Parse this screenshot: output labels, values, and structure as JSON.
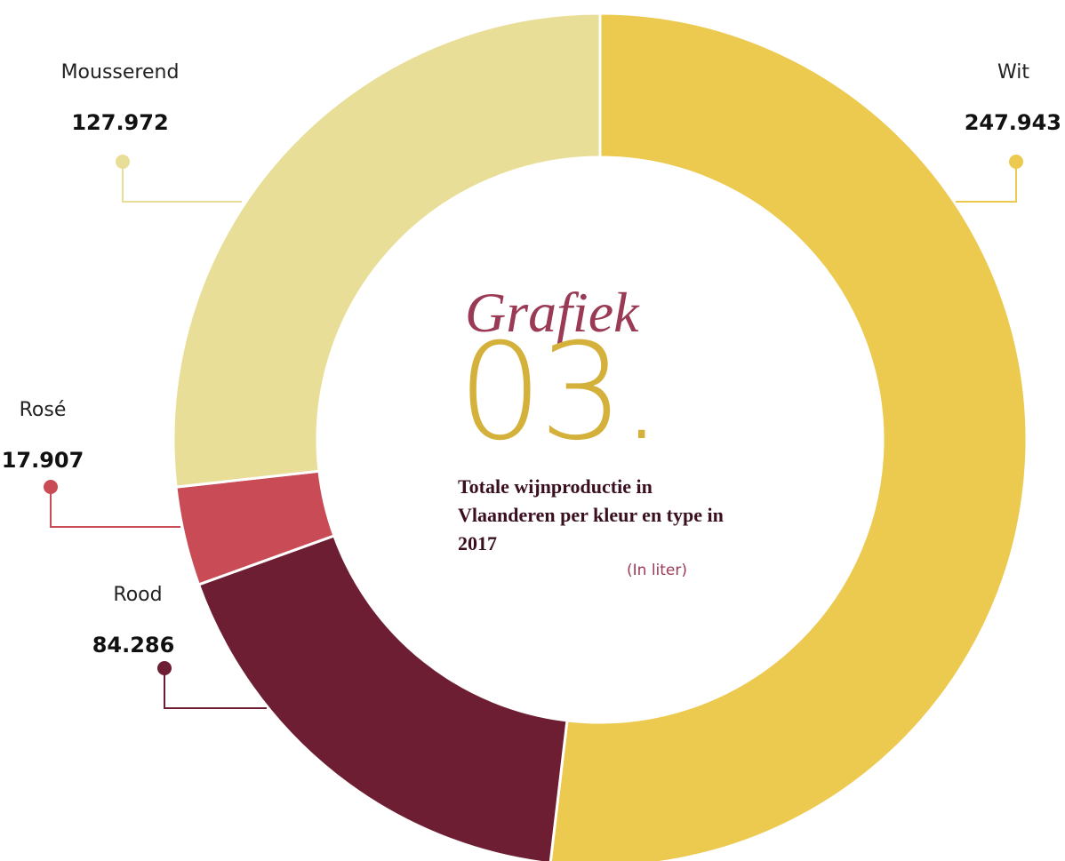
{
  "chart_data": {
    "type": "donut",
    "heading": "Grafiek",
    "number": "03.",
    "title": "Totale wijnproductie in Vlaanderen per kleur en type in 2017",
    "subtitle": "(In liter)",
    "categories": [
      "Wit",
      "Rood",
      "Rosé",
      "Mousserend"
    ],
    "values": [
      247943,
      84286,
      17907,
      127972
    ],
    "value_labels": [
      "247.943",
      "84.286",
      "17.907",
      "127.972"
    ],
    "colors": [
      "#ecc94f",
      "#6e1e32",
      "#c84b55",
      "#e8de97"
    ]
  }
}
